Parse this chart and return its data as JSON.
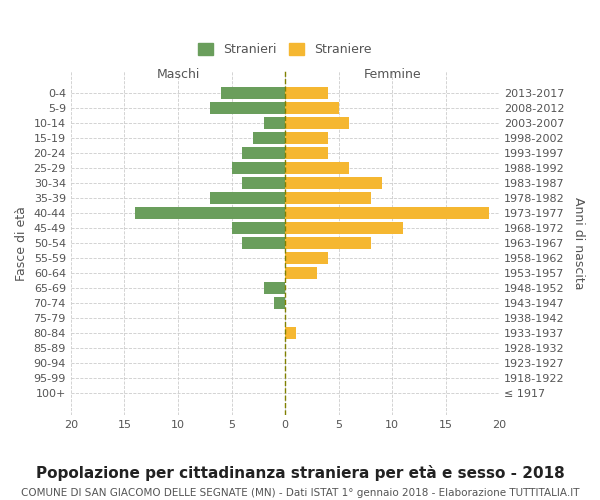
{
  "age_groups": [
    "0-4",
    "5-9",
    "10-14",
    "15-19",
    "20-24",
    "25-29",
    "30-34",
    "35-39",
    "40-44",
    "45-49",
    "50-54",
    "55-59",
    "60-64",
    "65-69",
    "70-74",
    "75-79",
    "80-84",
    "85-89",
    "90-94",
    "95-99",
    "100+"
  ],
  "birth_years": [
    "2013-2017",
    "2008-2012",
    "2003-2007",
    "1998-2002",
    "1993-1997",
    "1988-1992",
    "1983-1987",
    "1978-1982",
    "1973-1977",
    "1968-1972",
    "1963-1967",
    "1958-1962",
    "1953-1957",
    "1948-1952",
    "1943-1947",
    "1938-1942",
    "1933-1937",
    "1928-1932",
    "1923-1927",
    "1918-1922",
    "≤ 1917"
  ],
  "males": [
    6,
    7,
    2,
    3,
    4,
    5,
    4,
    7,
    14,
    5,
    4,
    0,
    0,
    2,
    1,
    0,
    0,
    0,
    0,
    0,
    0
  ],
  "females": [
    4,
    5,
    6,
    4,
    4,
    6,
    9,
    8,
    19,
    11,
    8,
    4,
    3,
    0,
    0,
    0,
    1,
    0,
    0,
    0,
    0
  ],
  "male_color": "#6a9e5c",
  "female_color": "#f5b731",
  "background_color": "#ffffff",
  "grid_color": "#cccccc",
  "title": "Popolazione per cittadinanza straniera per età e sesso - 2018",
  "subtitle": "COMUNE DI SAN GIACOMO DELLE SEGNATE (MN) - Dati ISTAT 1° gennaio 2018 - Elaborazione TUTTITALIA.IT",
  "xlabel_left": "Maschi",
  "xlabel_right": "Femmine",
  "ylabel_left": "Fasce di età",
  "ylabel_right": "Anni di nascita",
  "legend_male": "Stranieri",
  "legend_female": "Straniere",
  "xlim": [
    -20,
    20
  ],
  "bar_height": 0.8,
  "center_line_color": "#808000",
  "text_color": "#555555",
  "title_fontsize": 11,
  "subtitle_fontsize": 7.5,
  "tick_fontsize": 8,
  "label_fontsize": 9
}
